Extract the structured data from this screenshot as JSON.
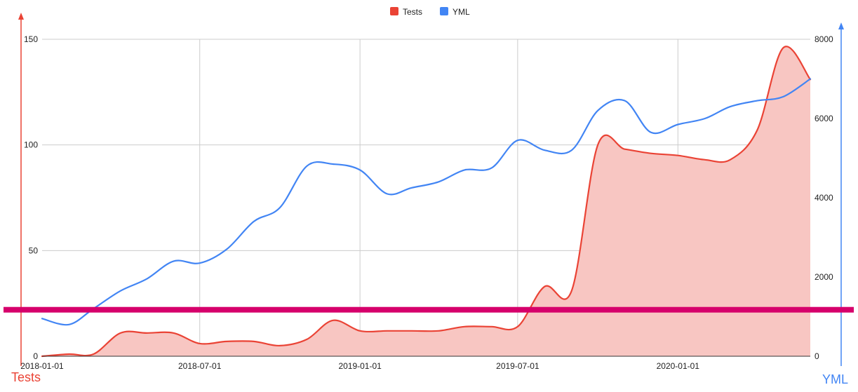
{
  "chart_data": {
    "type": "area",
    "x_axis": {
      "min": "2018-01-01",
      "max": "2020-05-01",
      "tick_labels": [
        "2018-01-01",
        "2018-07-01",
        "2019-01-01",
        "2019-07-01",
        "2020-01-01"
      ],
      "grid": true
    },
    "y_left": {
      "title": "Tests",
      "range": [
        0,
        150
      ],
      "tick_labels": [
        "0",
        "50",
        "100",
        "150"
      ],
      "grid": true
    },
    "y_right": {
      "title": "YML",
      "range": [
        0,
        8000
      ],
      "tick_labels": [
        "0",
        "2000",
        "4000",
        "6000",
        "8000"
      ]
    },
    "legend": {
      "position": "top-center",
      "items": [
        {
          "label": "Tests",
          "color": "#ea4335"
        },
        {
          "label": "YML",
          "color": "#4285f4"
        }
      ]
    },
    "series": [
      {
        "name": "Tests",
        "axis": "left",
        "type": "area",
        "color": "#ea4335",
        "fill_color": "#f8c6c2",
        "points": [
          [
            "2018-01-01",
            0
          ],
          [
            "2018-02-01",
            1
          ],
          [
            "2018-03-01",
            1
          ],
          [
            "2018-04-01",
            11
          ],
          [
            "2018-05-01",
            11
          ],
          [
            "2018-06-01",
            11
          ],
          [
            "2018-07-01",
            6
          ],
          [
            "2018-08-01",
            7
          ],
          [
            "2018-09-01",
            7
          ],
          [
            "2018-10-01",
            5
          ],
          [
            "2018-11-01",
            8
          ],
          [
            "2018-12-01",
            17
          ],
          [
            "2019-01-01",
            12
          ],
          [
            "2019-02-01",
            12
          ],
          [
            "2019-03-01",
            12
          ],
          [
            "2019-04-01",
            12
          ],
          [
            "2019-05-01",
            14
          ],
          [
            "2019-06-01",
            14
          ],
          [
            "2019-07-01",
            14
          ],
          [
            "2019-08-01",
            33
          ],
          [
            "2019-09-01",
            31
          ],
          [
            "2019-10-01",
            100
          ],
          [
            "2019-11-01",
            98
          ],
          [
            "2019-12-01",
            96
          ],
          [
            "2020-01-01",
            95
          ],
          [
            "2020-02-01",
            93
          ],
          [
            "2020-03-01",
            93
          ],
          [
            "2020-04-01",
            107
          ],
          [
            "2020-05-01",
            146
          ],
          [
            "2020-06-01",
            131
          ]
        ]
      },
      {
        "name": "YML",
        "axis": "right",
        "type": "line",
        "color": "#4285f4",
        "points": [
          [
            "2018-01-01",
            950
          ],
          [
            "2018-02-01",
            800
          ],
          [
            "2018-03-01",
            1200
          ],
          [
            "2018-04-01",
            1650
          ],
          [
            "2018-05-01",
            1950
          ],
          [
            "2018-06-01",
            2400
          ],
          [
            "2018-07-01",
            2350
          ],
          [
            "2018-08-01",
            2700
          ],
          [
            "2018-09-01",
            3400
          ],
          [
            "2018-10-01",
            3750
          ],
          [
            "2018-11-01",
            4800
          ],
          [
            "2018-12-01",
            4850
          ],
          [
            "2019-01-01",
            4700
          ],
          [
            "2019-02-01",
            4100
          ],
          [
            "2019-03-01",
            4250
          ],
          [
            "2019-04-01",
            4400
          ],
          [
            "2019-05-01",
            4700
          ],
          [
            "2019-06-01",
            4750
          ],
          [
            "2019-07-01",
            5450
          ],
          [
            "2019-08-01",
            5200
          ],
          [
            "2019-09-01",
            5200
          ],
          [
            "2019-10-01",
            6200
          ],
          [
            "2019-11-01",
            6450
          ],
          [
            "2019-12-01",
            5650
          ],
          [
            "2020-01-01",
            5850
          ],
          [
            "2020-02-01",
            6000
          ],
          [
            "2020-03-01",
            6300
          ],
          [
            "2020-04-01",
            6450
          ],
          [
            "2020-05-01",
            6550
          ],
          [
            "2020-06-01",
            7000
          ]
        ]
      }
    ]
  },
  "overlay": {
    "highlight_line": {
      "color": "#d6006b",
      "y_value_left": 22
    }
  }
}
